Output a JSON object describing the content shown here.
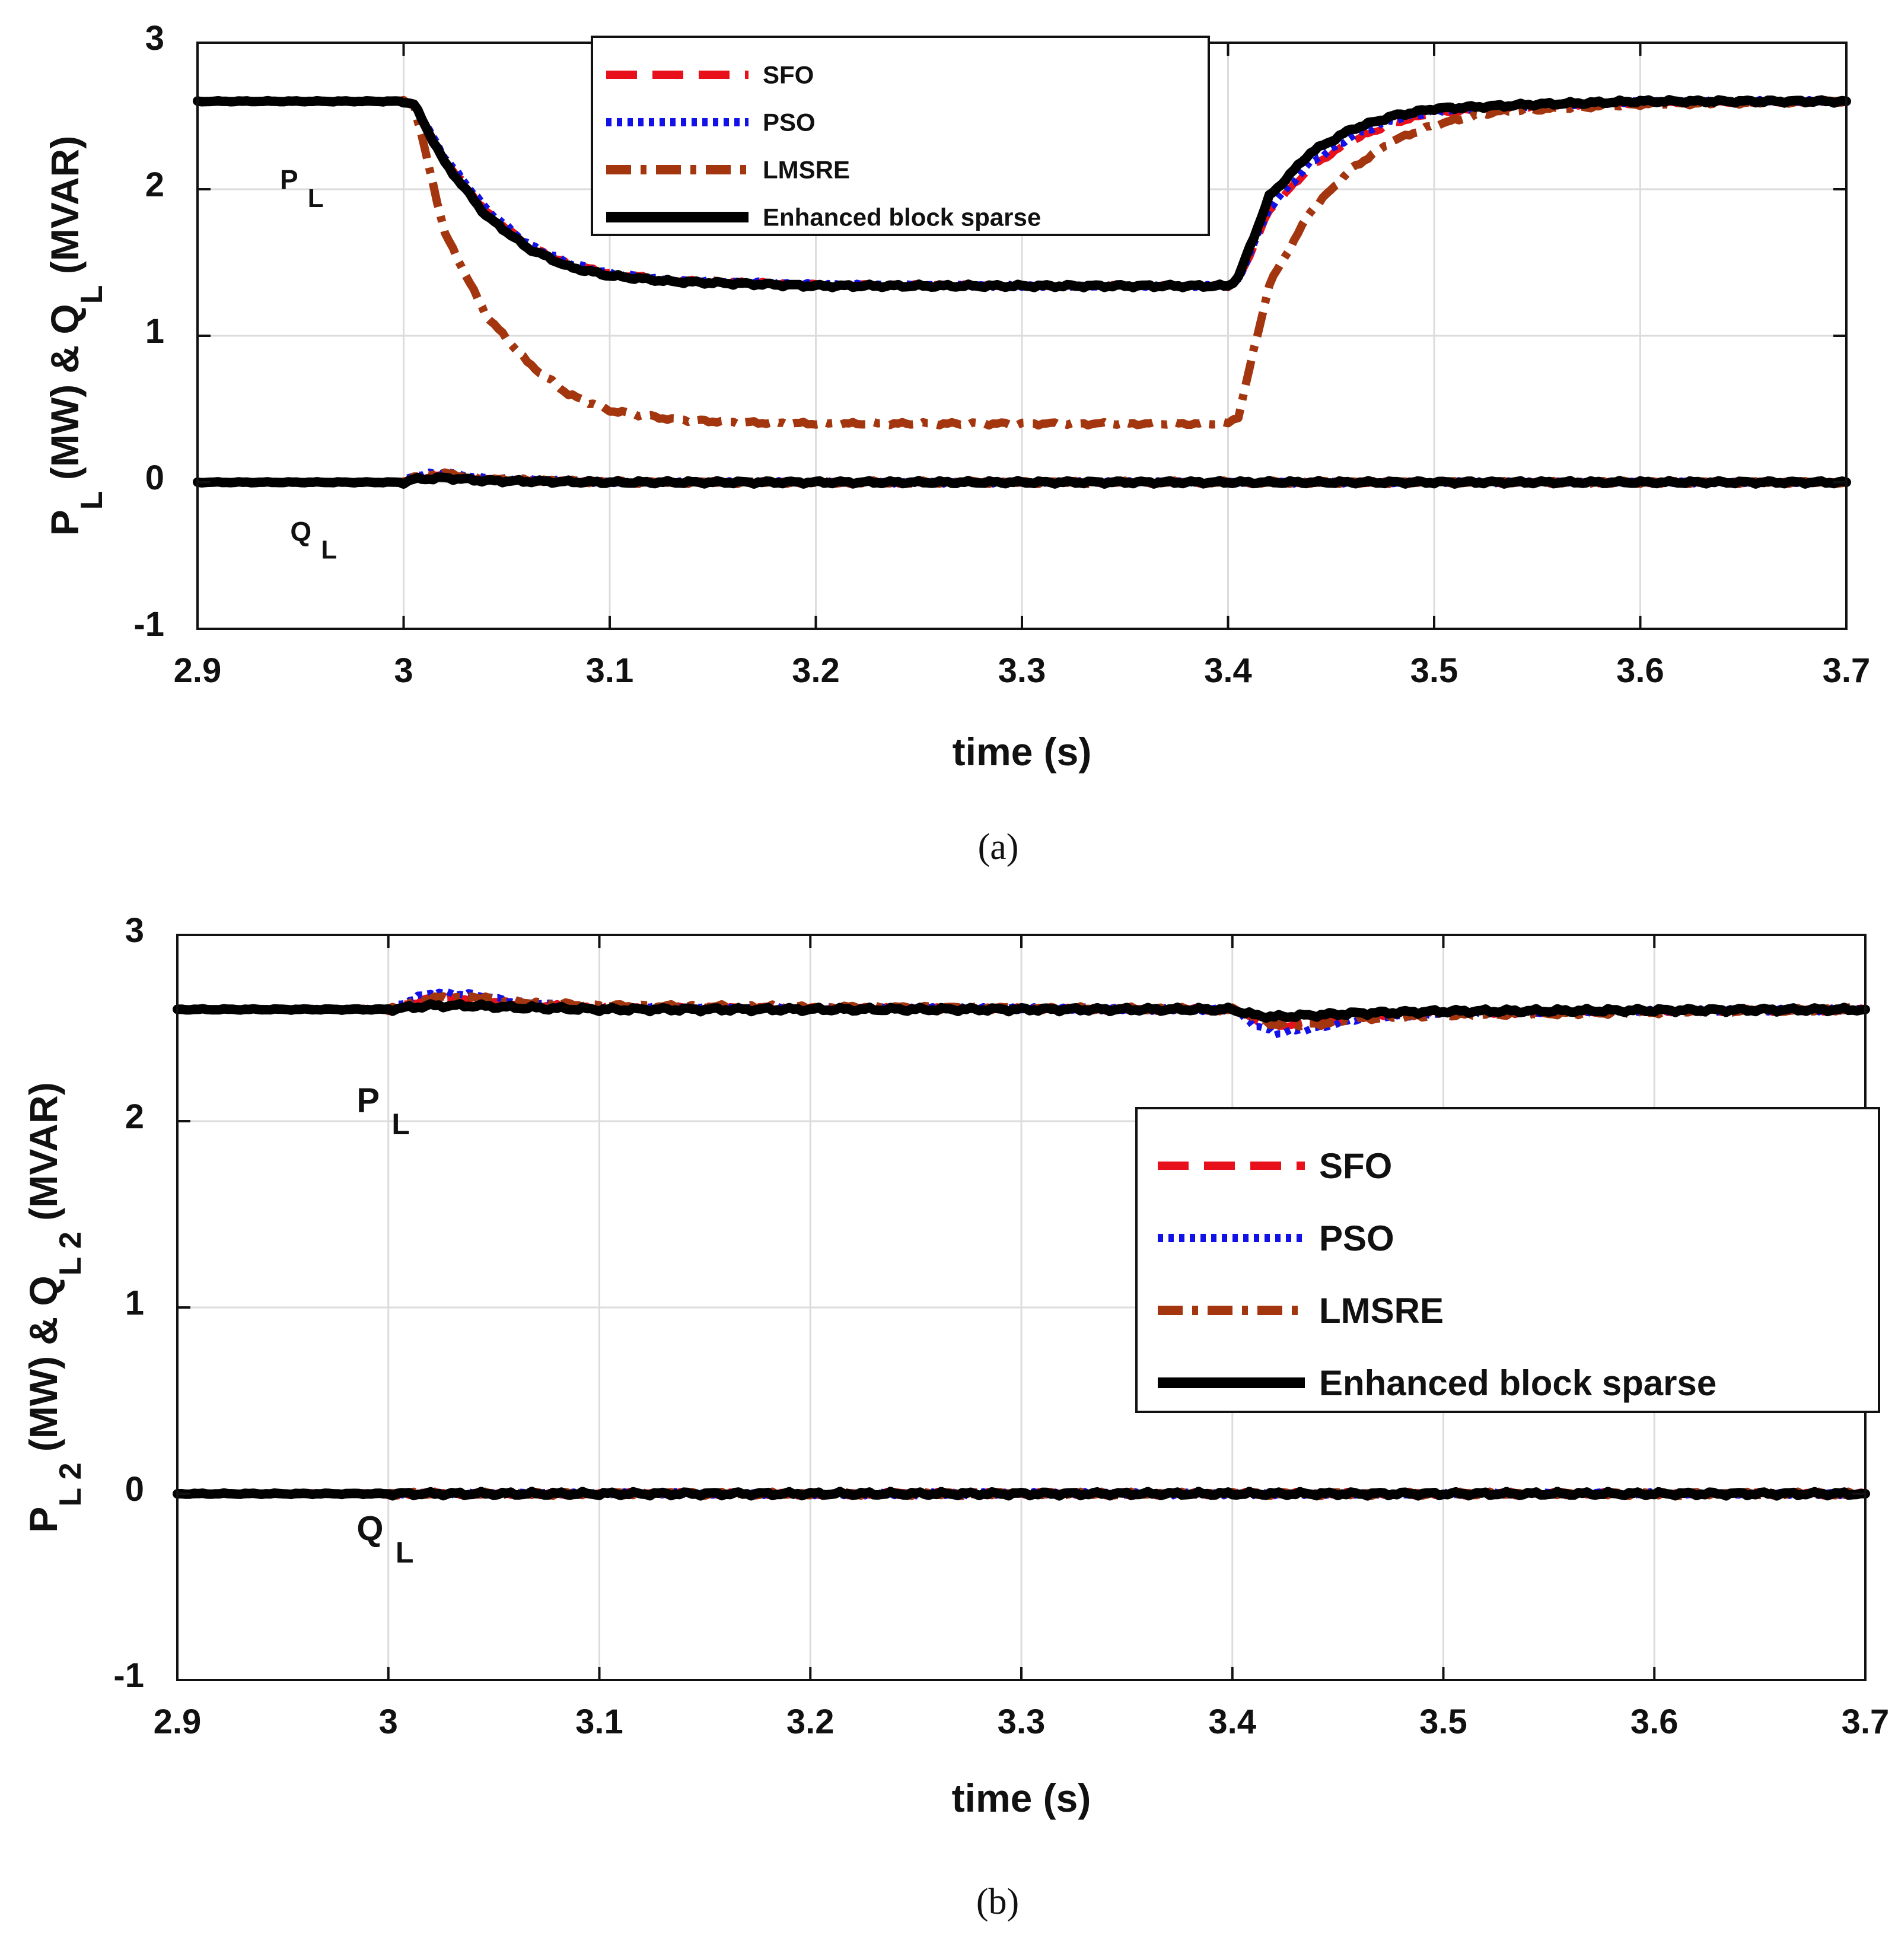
{
  "chart_data": [
    {
      "id": "a",
      "type": "line",
      "caption": "(a)",
      "xlabel": "time (s)",
      "ylabel": {
        "parts": [
          {
            "t": "P",
            "sub": false
          },
          {
            "t": "L",
            "sub": true
          },
          {
            "t": " (MW) & Q",
            "sub": false
          },
          {
            "t": "L",
            "sub": true
          },
          {
            "t": " (MVAR)",
            "sub": false
          }
        ]
      },
      "xlim": [
        2.9,
        3.7
      ],
      "ylim": [
        -1,
        3
      ],
      "xticks": [
        "2.9",
        "3",
        "3.1",
        "3.2",
        "3.3",
        "3.4",
        "3.5",
        "3.6",
        "3.7"
      ],
      "yticks": [
        "-1",
        "0",
        "1",
        "2",
        "3"
      ],
      "grid": true,
      "legend": {
        "placement": "top-center",
        "entries": [
          {
            "label": "SFO",
            "color": "#e8111b",
            "style": "dashed"
          },
          {
            "label": "PSO",
            "color": "#1212e6",
            "style": "dotted"
          },
          {
            "label": "LMSRE",
            "color": "#a3350f",
            "style": "dashdot"
          },
          {
            "label": "Enhanced block sparse",
            "color": "#000000",
            "style": "solid"
          }
        ]
      },
      "annotations": [
        {
          "text": "P",
          "sub": "L",
          "x": 2.94,
          "y": 2.0
        },
        {
          "text": "Q",
          "sub": "L",
          "x": 2.945,
          "y": -0.4
        }
      ],
      "series": [
        {
          "name": "SFO",
          "quantity": "P_L",
          "x": [
            2.9,
            3.0,
            3.005,
            3.02,
            3.04,
            3.06,
            3.08,
            3.1,
            3.13,
            3.2,
            3.3,
            3.4,
            3.405,
            3.42,
            3.44,
            3.46,
            3.48,
            3.5,
            3.55,
            3.6,
            3.7
          ],
          "y": [
            2.6,
            2.6,
            2.58,
            2.2,
            1.85,
            1.62,
            1.49,
            1.43,
            1.38,
            1.35,
            1.34,
            1.34,
            1.37,
            1.85,
            2.15,
            2.33,
            2.45,
            2.52,
            2.57,
            2.59,
            2.6
          ]
        },
        {
          "name": "PSO",
          "quantity": "P_L",
          "x": [
            2.9,
            3.0,
            3.005,
            3.02,
            3.04,
            3.06,
            3.08,
            3.1,
            3.13,
            3.2,
            3.3,
            3.4,
            3.405,
            3.42,
            3.44,
            3.46,
            3.48,
            3.5,
            3.55,
            3.6,
            3.7
          ],
          "y": [
            2.6,
            2.6,
            2.58,
            2.22,
            1.87,
            1.63,
            1.5,
            1.43,
            1.38,
            1.35,
            1.34,
            1.34,
            1.38,
            1.87,
            2.18,
            2.36,
            2.47,
            2.53,
            2.57,
            2.6,
            2.6
          ]
        },
        {
          "name": "LMSRE",
          "quantity": "P_L",
          "x": [
            2.9,
            3.0,
            3.005,
            3.02,
            3.04,
            3.06,
            3.08,
            3.1,
            3.13,
            3.16,
            3.2,
            3.3,
            3.4,
            3.405,
            3.42,
            3.44,
            3.46,
            3.48,
            3.5,
            3.53,
            3.6,
            3.7
          ],
          "y": [
            2.6,
            2.6,
            2.58,
            1.7,
            1.14,
            0.82,
            0.6,
            0.49,
            0.43,
            0.41,
            0.4,
            0.4,
            0.4,
            0.45,
            1.35,
            1.85,
            2.14,
            2.33,
            2.44,
            2.53,
            2.58,
            2.6
          ]
        },
        {
          "name": "Enhanced block sparse",
          "quantity": "P_L",
          "x": [
            2.9,
            3.0,
            3.005,
            3.02,
            3.04,
            3.06,
            3.08,
            3.1,
            3.13,
            3.2,
            3.3,
            3.4,
            3.405,
            3.42,
            3.44,
            3.46,
            3.48,
            3.5,
            3.55,
            3.6,
            3.7
          ],
          "y": [
            2.6,
            2.6,
            2.58,
            2.18,
            1.82,
            1.6,
            1.47,
            1.41,
            1.37,
            1.34,
            1.34,
            1.34,
            1.4,
            1.95,
            2.25,
            2.41,
            2.5,
            2.55,
            2.58,
            2.6,
            2.6
          ]
        },
        {
          "name": "SFO",
          "quantity": "Q_L",
          "x": [
            2.9,
            3.0,
            3.005,
            3.02,
            3.04,
            3.1,
            3.4,
            3.7
          ],
          "y": [
            0.0,
            0.0,
            0.03,
            0.05,
            0.02,
            0.0,
            0.0,
            0.0
          ]
        },
        {
          "name": "PSO",
          "quantity": "Q_L",
          "x": [
            2.9,
            3.0,
            3.005,
            3.02,
            3.04,
            3.1,
            3.4,
            3.7
          ],
          "y": [
            0.0,
            0.0,
            0.05,
            0.07,
            0.03,
            0.0,
            0.0,
            0.0
          ]
        },
        {
          "name": "LMSRE",
          "quantity": "Q_L",
          "x": [
            2.9,
            3.0,
            3.005,
            3.02,
            3.04,
            3.1,
            3.4,
            3.7
          ],
          "y": [
            0.0,
            0.0,
            0.04,
            0.06,
            0.02,
            0.0,
            0.0,
            0.0
          ]
        },
        {
          "name": "Enhanced block sparse",
          "quantity": "Q_L",
          "x": [
            2.9,
            3.0,
            3.005,
            3.02,
            3.04,
            3.1,
            3.4,
            3.7
          ],
          "y": [
            0.0,
            0.0,
            0.02,
            0.03,
            0.01,
            0.0,
            0.0,
            0.0
          ]
        }
      ]
    },
    {
      "id": "b",
      "type": "line",
      "caption": "(b)",
      "xlabel": "time (s)",
      "ylabel": {
        "parts": [
          {
            "t": "P",
            "sub": false
          },
          {
            "t": "L 2",
            "sub": true
          },
          {
            "t": " (MW) & Q",
            "sub": false
          },
          {
            "t": "L 2",
            "sub": true
          },
          {
            "t": " (MVAR)",
            "sub": false
          }
        ]
      },
      "xlim": [
        2.9,
        3.7
      ],
      "ylim": [
        -1,
        3
      ],
      "xticks": [
        "2.9",
        "3",
        "3.1",
        "3.2",
        "3.3",
        "3.4",
        "3.5",
        "3.6",
        "3.7"
      ],
      "yticks": [
        "-1",
        "0",
        "1",
        "2",
        "3"
      ],
      "grid": true,
      "legend": {
        "placement": "center-right",
        "entries": [
          {
            "label": "SFO",
            "color": "#e8111b",
            "style": "dashed"
          },
          {
            "label": "PSO",
            "color": "#1212e6",
            "style": "dotted"
          },
          {
            "label": "LMSRE",
            "color": "#a3350f",
            "style": "dashdot"
          },
          {
            "label": "Enhanced block sparse",
            "color": "#000000",
            "style": "solid"
          }
        ]
      },
      "annotations": [
        {
          "text": "P",
          "sub": "L",
          "x": 2.985,
          "y": 2.05
        },
        {
          "text": "Q",
          "sub": "L",
          "x": 2.985,
          "y": -0.25
        }
      ],
      "series": [
        {
          "name": "SFO",
          "quantity": "P_L2",
          "x": [
            2.9,
            3.0,
            3.01,
            3.02,
            3.04,
            3.06,
            3.1,
            3.4,
            3.41,
            3.42,
            3.44,
            3.46,
            3.5,
            3.7
          ],
          "y": [
            2.6,
            2.6,
            2.63,
            2.66,
            2.66,
            2.63,
            2.61,
            2.6,
            2.55,
            2.51,
            2.53,
            2.56,
            2.58,
            2.6
          ]
        },
        {
          "name": "PSO",
          "quantity": "P_L2",
          "x": [
            2.9,
            3.0,
            3.01,
            3.02,
            3.04,
            3.06,
            3.1,
            3.4,
            3.41,
            3.42,
            3.44,
            3.46,
            3.5,
            3.7
          ],
          "y": [
            2.6,
            2.6,
            2.65,
            2.69,
            2.68,
            2.64,
            2.61,
            2.6,
            2.52,
            2.47,
            2.5,
            2.55,
            2.58,
            2.6
          ]
        },
        {
          "name": "LMSRE",
          "quantity": "P_L2",
          "x": [
            2.9,
            3.0,
            3.01,
            3.02,
            3.04,
            3.06,
            3.1,
            3.4,
            3.41,
            3.42,
            3.44,
            3.46,
            3.5,
            3.7
          ],
          "y": [
            2.6,
            2.6,
            2.63,
            2.66,
            2.67,
            2.64,
            2.62,
            2.6,
            2.56,
            2.52,
            2.52,
            2.55,
            2.57,
            2.6
          ]
        },
        {
          "name": "Enhanced block sparse",
          "quantity": "P_L2",
          "x": [
            2.9,
            3.0,
            3.01,
            3.02,
            3.04,
            3.06,
            3.1,
            3.4,
            3.41,
            3.42,
            3.44,
            3.46,
            3.5,
            3.7
          ],
          "y": [
            2.6,
            2.6,
            2.61,
            2.62,
            2.62,
            2.61,
            2.6,
            2.6,
            2.57,
            2.56,
            2.57,
            2.58,
            2.59,
            2.6
          ]
        },
        {
          "name": "SFO",
          "quantity": "Q_L2",
          "x": [
            2.9,
            3.7
          ],
          "y": [
            0.0,
            0.0
          ]
        },
        {
          "name": "PSO",
          "quantity": "Q_L2",
          "x": [
            2.9,
            3.7
          ],
          "y": [
            0.0,
            0.0
          ]
        },
        {
          "name": "LMSRE",
          "quantity": "Q_L2",
          "x": [
            2.9,
            3.7
          ],
          "y": [
            0.0,
            0.0
          ]
        },
        {
          "name": "Enhanced block sparse",
          "quantity": "Q_L2",
          "x": [
            2.9,
            3.7
          ],
          "y": [
            0.0,
            0.0
          ]
        }
      ]
    }
  ]
}
